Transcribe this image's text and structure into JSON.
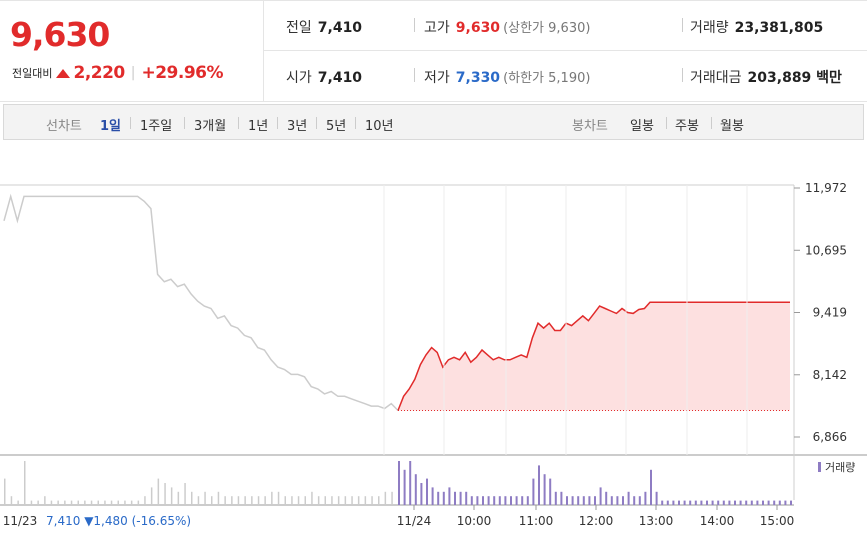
{
  "summary": {
    "price": "9,630",
    "change_label": "전일대비",
    "change_amount": "2,220",
    "change_pct": "+29.96%",
    "prev_label": "전일",
    "prev_value": "7,410",
    "high_label": "고가",
    "high_value": "9,630",
    "upper_limit": "(상한가 9,630)",
    "volume_label": "거래량",
    "volume_value": "23,381,805",
    "open_label": "시가",
    "open_value": "7,410",
    "low_label": "저가",
    "low_value": "7,330",
    "lower_limit": "(하한가 5,190)",
    "amount_label": "거래대금",
    "amount_value": "203,889 백만"
  },
  "tabs": {
    "line_label": "선차트",
    "periods": [
      "1일",
      "1주일",
      "3개월",
      "1년",
      "3년",
      "5년",
      "10년"
    ],
    "candle_label": "봉차트",
    "candles": [
      "일봉",
      "주봉",
      "월봉"
    ]
  },
  "colors": {
    "up": "#e12b2b",
    "down": "#2a6ac8",
    "prev_day": "#cccccc",
    "volume": "#8e7cc3"
  },
  "chart_data": {
    "type": "line",
    "ylim": [
      6866,
      11972
    ],
    "yticks": [
      11972,
      10695,
      9419,
      8142,
      6866
    ],
    "ytick_labels": [
      "11,972",
      "10,695",
      "9,419",
      "8,142",
      "6,866"
    ],
    "x_labels": [
      "11/23",
      "11/24",
      "10:00",
      "11:00",
      "12:00",
      "13:00",
      "14:00",
      "15:00"
    ],
    "prev_day_note": {
      "close": "7,410",
      "change": "1,480",
      "pct": "(-16.65%)"
    },
    "volume_legend": "거래량",
    "base_value": 7410,
    "prev_day": {
      "values": [
        11300,
        11800,
        11300,
        11800,
        11800,
        11800,
        11800,
        11800,
        11800,
        11800,
        11800,
        11800,
        11800,
        11800,
        11800,
        11800,
        11800,
        11800,
        11800,
        11800,
        11800,
        11700,
        11550,
        10200,
        10050,
        10100,
        9950,
        10000,
        9800,
        9650,
        9550,
        9500,
        9300,
        9350,
        9150,
        9100,
        8950,
        8900,
        8700,
        8650,
        8450,
        8300,
        8250,
        8150,
        8150,
        8100,
        7900,
        7850,
        7750,
        7800,
        7700,
        7700,
        7650,
        7600,
        7550,
        7500,
        7500,
        7450,
        7550,
        7410
      ]
    },
    "today": {
      "values": [
        7410,
        7700,
        7850,
        8050,
        8350,
        8550,
        8700,
        8600,
        8300,
        8450,
        8500,
        8450,
        8600,
        8400,
        8500,
        8650,
        8550,
        8450,
        8500,
        8450,
        8450,
        8500,
        8550,
        8500,
        8900,
        9200,
        9100,
        9200,
        9050,
        9050,
        9200,
        9150,
        9250,
        9350,
        9250,
        9400,
        9550,
        9500,
        9450,
        9400,
        9500,
        9420,
        9400,
        9480,
        9500,
        9630,
        9630,
        9630,
        9630,
        9630,
        9630,
        9630,
        9630,
        9630,
        9630,
        9630,
        9630,
        9630,
        9630,
        9630,
        9630,
        9630,
        9630,
        9630,
        9630,
        9630,
        9630,
        9630,
        9630,
        9630,
        9630
      ]
    },
    "volume": {
      "prev_day": [
        0.6,
        0.2,
        0.1,
        1.0,
        0.1,
        0.1,
        0.2,
        0.1,
        0.1,
        0.1,
        0.1,
        0.1,
        0.1,
        0.1,
        0.1,
        0.1,
        0.1,
        0.1,
        0.1,
        0.1,
        0.1,
        0.2,
        0.4,
        0.6,
        0.5,
        0.4,
        0.3,
        0.5,
        0.3,
        0.2,
        0.3,
        0.2,
        0.3,
        0.2,
        0.2,
        0.2,
        0.2,
        0.2,
        0.2,
        0.2,
        0.3,
        0.3,
        0.2,
        0.2,
        0.2,
        0.2,
        0.3,
        0.2,
        0.2,
        0.2,
        0.2,
        0.2,
        0.2,
        0.2,
        0.2,
        0.2,
        0.2,
        0.3,
        0.3,
        0.3
      ],
      "today": [
        1.0,
        0.8,
        1.0,
        0.7,
        0.5,
        0.6,
        0.4,
        0.3,
        0.3,
        0.4,
        0.3,
        0.3,
        0.3,
        0.2,
        0.2,
        0.2,
        0.2,
        0.2,
        0.2,
        0.2,
        0.2,
        0.2,
        0.2,
        0.2,
        0.6,
        0.9,
        0.7,
        0.6,
        0.3,
        0.3,
        0.2,
        0.2,
        0.2,
        0.2,
        0.2,
        0.2,
        0.4,
        0.3,
        0.2,
        0.2,
        0.2,
        0.3,
        0.2,
        0.2,
        0.3,
        0.8,
        0.3,
        0.1,
        0.1,
        0.1,
        0.1,
        0.1,
        0.1,
        0.1,
        0.1,
        0.1,
        0.1,
        0.1,
        0.1,
        0.1,
        0.1,
        0.1,
        0.1,
        0.1,
        0.1,
        0.1,
        0.1,
        0.1,
        0.1,
        0.1,
        0.1
      ]
    }
  }
}
